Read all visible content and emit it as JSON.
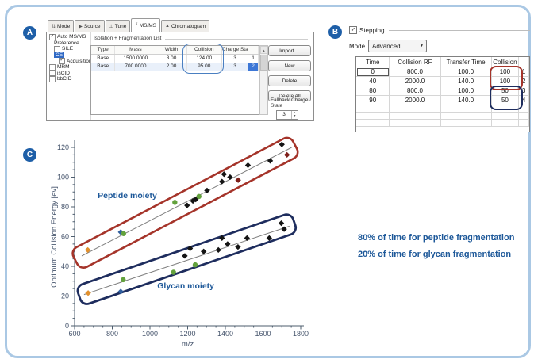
{
  "panel_a": {
    "badge": "A",
    "tabs": [
      {
        "label": "Mode",
        "icon": "mode-icon",
        "glyph": "⇅",
        "active": false
      },
      {
        "label": "Source",
        "icon": "source-icon",
        "glyph": "▶",
        "active": false
      },
      {
        "label": "Tune",
        "icon": "tune-icon",
        "glyph": "⊥",
        "active": false
      },
      {
        "label": "MS/MS",
        "icon": "msms-icon",
        "glyph": "ƒ",
        "active": true
      },
      {
        "label": "Chromatogram",
        "icon": "chromatogram-icon",
        "glyph": "▲",
        "active": false
      }
    ],
    "tree": [
      {
        "label": "Auto MS/MS",
        "indent": 0,
        "checkbox": true,
        "checked": true,
        "selected": false
      },
      {
        "label": "Preference",
        "indent": 1,
        "checkbox": false,
        "checked": false,
        "selected": false
      },
      {
        "label": "SILE",
        "indent": 1,
        "checkbox": true,
        "checked": false,
        "selected": false
      },
      {
        "label": "CE",
        "indent": 1,
        "checkbox": false,
        "checked": false,
        "selected": true
      },
      {
        "label": "Acquisition",
        "indent": 2,
        "checkbox": true,
        "checked": true,
        "selected": false
      },
      {
        "label": "MRM",
        "indent": 0,
        "checkbox": true,
        "checked": false,
        "selected": false
      },
      {
        "label": "isCID",
        "indent": 0,
        "checkbox": true,
        "checked": false,
        "selected": false
      },
      {
        "label": "bbCID",
        "indent": 0,
        "checkbox": true,
        "checked": false,
        "selected": false
      }
    ],
    "group_title": "Isolation + Fragmentation List",
    "table": {
      "columns": [
        "Type",
        "Mass",
        "Width",
        "Collision",
        "Charge State",
        ""
      ],
      "rows": [
        [
          "Base",
          "1500.0000",
          "3.00",
          "124.00",
          "3",
          "1"
        ],
        [
          "Base",
          "700.0000",
          "2.00",
          "95.00",
          "3",
          "2"
        ]
      ],
      "selected_row_index": 1
    },
    "buttons": [
      "Import ...",
      "New",
      "Delete",
      "Delete All"
    ],
    "fallback_label": "Fallback Charge State",
    "fallback_value": "3"
  },
  "panel_b": {
    "badge": "B",
    "stepping_label": "Stepping",
    "stepping_checked": true,
    "mode_label": "Mode",
    "mode_value": "Advanced",
    "table": {
      "columns": [
        "Time",
        "Collision RF",
        "Transfer Time",
        "Collision",
        ""
      ],
      "rows": [
        [
          "0",
          "800.0",
          "100.0",
          "100",
          "1"
        ],
        [
          "40",
          "2000.0",
          "140.0",
          "100",
          "2"
        ],
        [
          "80",
          "800.0",
          "100.0",
          "50",
          "3"
        ],
        [
          "90",
          "2000.0",
          "140.0",
          "50",
          "4"
        ]
      ],
      "empty_rows": 3,
      "red_highlight_color": "#a5342a",
      "navy_highlight_color": "#1e2d5e"
    }
  },
  "panel_c": {
    "badge": "C",
    "annotation_lines": [
      "80% of time for peptide fragmentation",
      "20% of time for glycan fragmentation"
    ],
    "annotation_color": "#1d5899"
  },
  "chart_data": {
    "type": "scatter",
    "title": "",
    "xlabel": "m/z",
    "ylabel": "Optimum Collision Energy [ev]",
    "xlim": [
      600,
      1800
    ],
    "ylim": [
      0,
      120
    ],
    "x_major_ticks": [
      600,
      800,
      1000,
      1200,
      1400,
      1600,
      1800
    ],
    "y_major_ticks": [
      0,
      20,
      40,
      60,
      80,
      100,
      120
    ],
    "x_minor_step": 50,
    "y_minor_step": 5,
    "grid": false,
    "axis_color": "#4d5d6e",
    "trend_color": "#808080",
    "point_styles": {
      "o": {
        "name": "orange",
        "color": "#e2902c",
        "shape": "diamond"
      },
      "b": {
        "name": "blue",
        "color": "#2f5e9e",
        "shape": "diamond"
      },
      "g": {
        "name": "green",
        "color": "#63a23d",
        "shape": "circle"
      },
      "k": {
        "name": "black",
        "color": "#141414",
        "shape": "diamond"
      },
      "r": {
        "name": "darkred",
        "color": "#7e1f1a",
        "shape": "diamond"
      }
    },
    "series": [
      {
        "name": "Peptide moiety",
        "label_color": "#1d5899",
        "label_pos": {
          "x": 880,
          "y": 86
        },
        "trend": {
          "x1": 638,
          "y1": 47,
          "x2": 1752,
          "y2": 120
        },
        "outline": {
          "x1": 634,
          "y1": 46,
          "x2": 1740,
          "y2": 119.5,
          "half_width": 14,
          "end_pad": 8,
          "radius": 9,
          "color": "#a5342a",
          "stroke_width": 2.6
        },
        "points": [
          [
            670,
            51,
            "o"
          ],
          [
            845,
            63,
            "b"
          ],
          [
            860,
            62,
            "g"
          ],
          [
            1132,
            83,
            "g"
          ],
          [
            1197,
            81,
            "k"
          ],
          [
            1228,
            84,
            "k"
          ],
          [
            1243,
            85,
            "k"
          ],
          [
            1260,
            87,
            "g"
          ],
          [
            1303,
            91,
            "k"
          ],
          [
            1382,
            97,
            "k"
          ],
          [
            1393,
            102,
            "k"
          ],
          [
            1425,
            100,
            "k"
          ],
          [
            1468,
            98,
            "r"
          ],
          [
            1520,
            108,
            "k"
          ],
          [
            1638,
            111,
            "k"
          ],
          [
            1700,
            122,
            "k"
          ],
          [
            1727,
            115,
            "r"
          ]
        ]
      },
      {
        "name": "Glycan moiety",
        "label_color": "#1d5899",
        "label_pos": {
          "x": 1190,
          "y": 25
        },
        "trend": {
          "x1": 650,
          "y1": 21,
          "x2": 1740,
          "y2": 67
        },
        "outline": {
          "x1": 660,
          "y1": 21.5,
          "x2": 1730,
          "y2": 68,
          "half_width": 13,
          "end_pad": 9,
          "radius": 9,
          "color": "#1e2d5e",
          "stroke_width": 2.8
        },
        "points": [
          [
            672,
            22,
            "o"
          ],
          [
            845,
            23,
            "b"
          ],
          [
            858,
            31,
            "g"
          ],
          [
            1125,
            36,
            "g"
          ],
          [
            1185,
            47,
            "k"
          ],
          [
            1213,
            52,
            "k"
          ],
          [
            1240,
            41,
            "g"
          ],
          [
            1285,
            50,
            "k"
          ],
          [
            1363,
            51,
            "k"
          ],
          [
            1382,
            59,
            "k"
          ],
          [
            1412,
            55,
            "k"
          ],
          [
            1467,
            53,
            "k"
          ],
          [
            1515,
            59,
            "k"
          ],
          [
            1633,
            59,
            "k"
          ],
          [
            1697,
            69,
            "k"
          ],
          [
            1712,
            65,
            "k"
          ]
        ]
      }
    ]
  }
}
